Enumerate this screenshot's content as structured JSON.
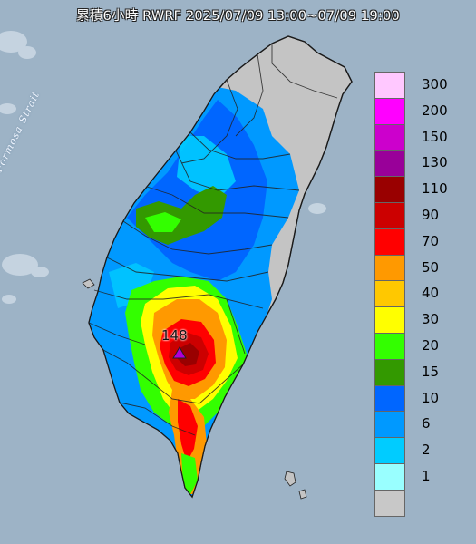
{
  "title": "累積6小時 RWRF 2025/07/09 13:00~07/09 19:00",
  "strait_label": "Formosa Strait",
  "max_station": {
    "value": "148",
    "marker_color": "#b000d8"
  },
  "legend": [
    {
      "label": "300",
      "color": "#ffc8ff"
    },
    {
      "label": "200",
      "color": "#ff00ff"
    },
    {
      "label": "150",
      "color": "#cc00cc"
    },
    {
      "label": "130",
      "color": "#990099"
    },
    {
      "label": "110",
      "color": "#990000"
    },
    {
      "label": "90",
      "color": "#cc0000"
    },
    {
      "label": "70",
      "color": "#ff0000"
    },
    {
      "label": "50",
      "color": "#ff9900"
    },
    {
      "label": "40",
      "color": "#ffc800"
    },
    {
      "label": "30",
      "color": "#ffff00"
    },
    {
      "label": "20",
      "color": "#33ff00"
    },
    {
      "label": "15",
      "color": "#339900"
    },
    {
      "label": "10",
      "color": "#0066ff"
    },
    {
      "label": "6",
      "color": "#0099ff"
    },
    {
      "label": "2",
      "color": "#00ccff"
    },
    {
      "label": "1",
      "color": "#99ffff"
    },
    {
      "label": "",
      "color": "#c8c8c8"
    }
  ],
  "colors": {
    "sea": "#9db3c6",
    "land_dry": "#c4c4c4",
    "border": "#333333"
  }
}
